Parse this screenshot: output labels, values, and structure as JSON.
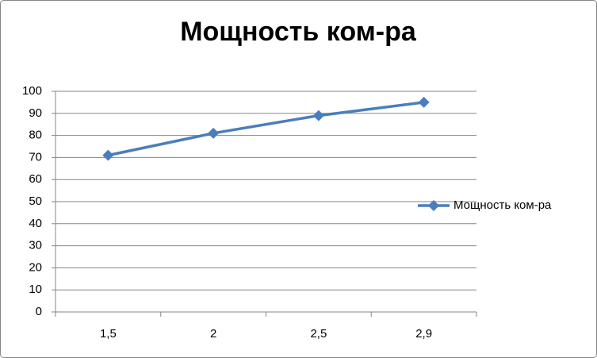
{
  "chart_data": {
    "type": "line",
    "title": "Мощность ком-ра",
    "categories": [
      "1,5",
      "2",
      "2,5",
      "2,9"
    ],
    "series": [
      {
        "name": "Мощность ком-ра",
        "color": "#4a7ebb",
        "values": [
          71,
          81,
          89,
          95
        ]
      }
    ],
    "ylim": [
      0,
      100
    ],
    "yticks": [
      0,
      10,
      20,
      30,
      40,
      50,
      60,
      70,
      80,
      90,
      100
    ],
    "grid": true,
    "legend": "right"
  }
}
